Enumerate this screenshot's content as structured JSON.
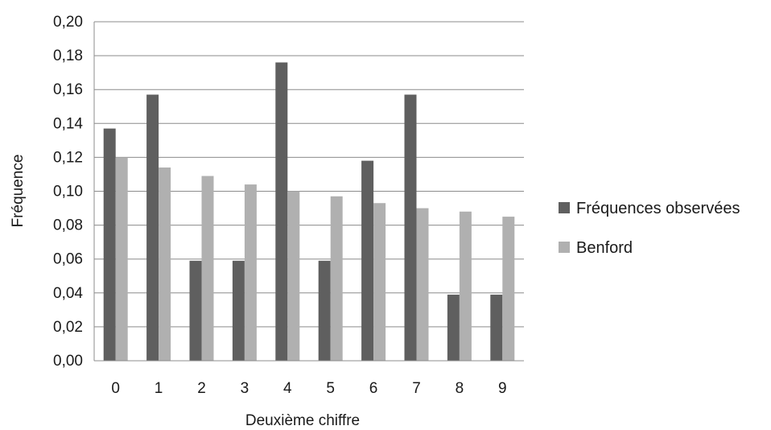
{
  "chart_data": {
    "type": "bar",
    "categories": [
      "0",
      "1",
      "2",
      "3",
      "4",
      "5",
      "6",
      "7",
      "8",
      "9"
    ],
    "series": [
      {
        "name": "Fréquences observées",
        "color": "#5f5f5f",
        "values": [
          0.137,
          0.157,
          0.059,
          0.059,
          0.176,
          0.059,
          0.118,
          0.157,
          0.039,
          0.039
        ]
      },
      {
        "name": "Benford",
        "color": "#b0b0b0",
        "values": [
          0.12,
          0.114,
          0.109,
          0.104,
          0.1,
          0.097,
          0.093,
          0.09,
          0.088,
          0.085
        ]
      }
    ],
    "xlabel": "Deuxième chiffre",
    "ylabel": "Fréquence",
    "ylim": [
      0,
      0.2
    ],
    "yticks": [
      "0,00",
      "0,02",
      "0,04",
      "0,06",
      "0,08",
      "0,10",
      "0,12",
      "0,14",
      "0,16",
      "0,18",
      "0,20"
    ],
    "grid": true,
    "legend_position": "right"
  }
}
